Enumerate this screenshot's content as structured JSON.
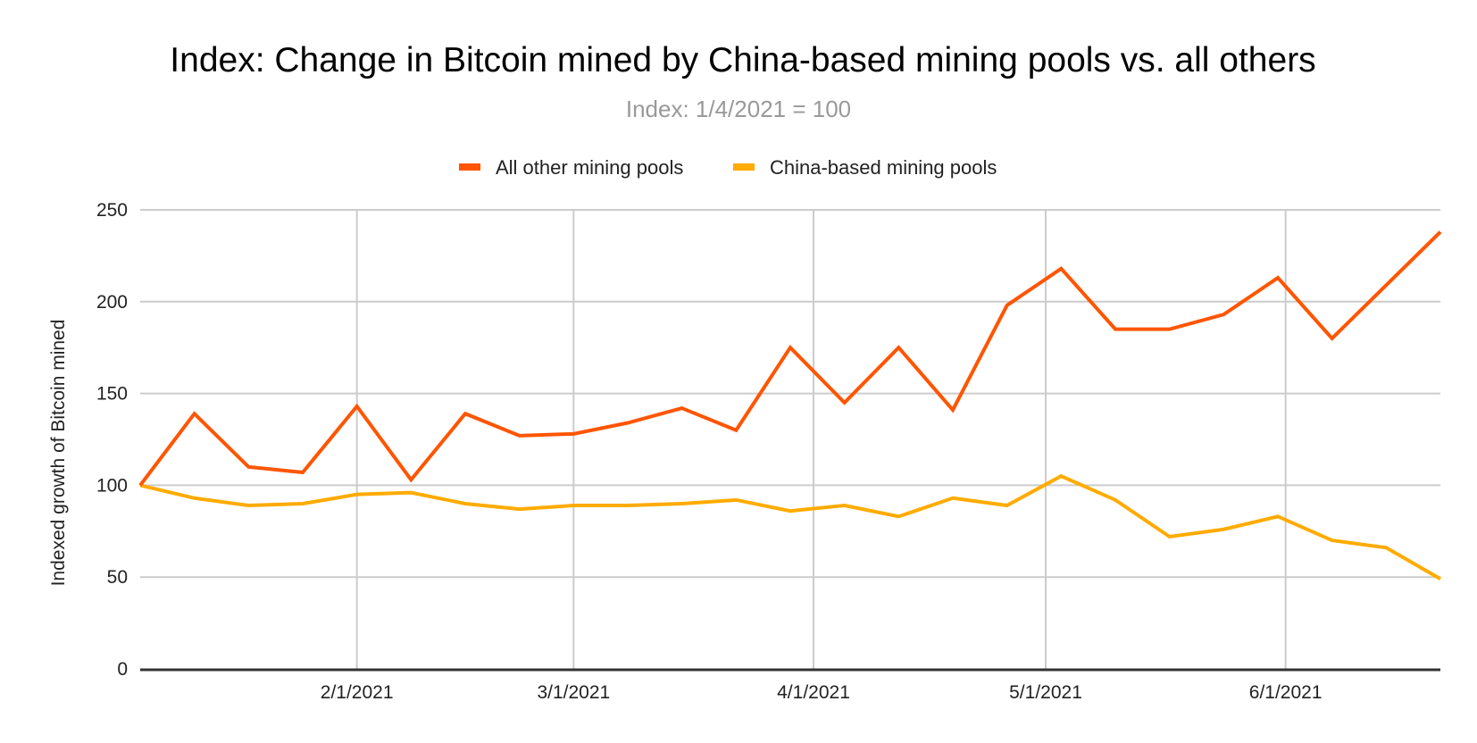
{
  "chart_data": {
    "type": "line",
    "title": "Index: Change in Bitcoin mined by China-based mining pools vs. all others",
    "subtitle": "Index: 1/4/2021 = 100",
    "xlabel": "",
    "ylabel": "Indexed growth of Bitcoin mined",
    "ylim": [
      0,
      250
    ],
    "yticks": [
      0,
      50,
      100,
      150,
      200,
      250
    ],
    "ytick_labels": [
      "0",
      "50",
      "100",
      "150",
      "200",
      "250"
    ],
    "xlim_days_from_start": [
      0,
      168
    ],
    "start_date": "1/4/2021",
    "xticks": [
      {
        "label": "2/1/2021",
        "day": 28
      },
      {
        "label": "3/1/2021",
        "day": 56
      },
      {
        "label": "4/1/2021",
        "day": 87
      },
      {
        "label": "5/1/2021",
        "day": 117
      },
      {
        "label": "6/1/2021",
        "day": 148
      }
    ],
    "grid": true,
    "legend_position": "top-center",
    "x": [
      "1/4/2021",
      "1/11/2021",
      "1/18/2021",
      "1/25/2021",
      "2/1/2021",
      "2/8/2021",
      "2/15/2021",
      "2/22/2021",
      "3/1/2021",
      "3/8/2021",
      "3/15/2021",
      "3/22/2021",
      "3/29/2021",
      "4/5/2021",
      "4/12/2021",
      "4/19/2021",
      "4/26/2021",
      "5/3/2021",
      "5/10/2021",
      "5/17/2021",
      "5/24/2021",
      "5/31/2021",
      "6/7/2021",
      "6/14/2021",
      "6/21/2021"
    ],
    "x_days": [
      0,
      7,
      14,
      21,
      28,
      35,
      42,
      49,
      56,
      63,
      70,
      77,
      84,
      91,
      98,
      105,
      112,
      119,
      126,
      133,
      140,
      147,
      154,
      161,
      168
    ],
    "series": [
      {
        "name": "All other mining pools",
        "color": "#ff5500",
        "values": [
          100,
          139,
          110,
          107,
          143,
          103,
          139,
          127,
          128,
          134,
          142,
          130,
          175,
          145,
          175,
          141,
          198,
          218,
          185,
          185,
          193,
          213,
          180,
          209,
          238
        ]
      },
      {
        "name": "China-based mining pools",
        "color": "#ffab00",
        "values": [
          100,
          93,
          89,
          90,
          95,
          96,
          90,
          87,
          89,
          89,
          90,
          92,
          86,
          89,
          83,
          93,
          89,
          105,
          92,
          72,
          76,
          83,
          70,
          66,
          49
        ]
      }
    ]
  }
}
